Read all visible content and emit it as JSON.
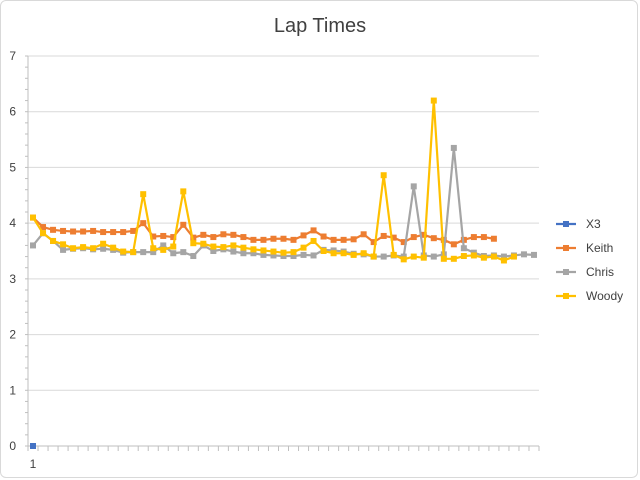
{
  "chart_data": {
    "type": "line",
    "title": "Lap Times",
    "xlabel": "",
    "ylabel": "",
    "ylim": [
      0,
      7
    ],
    "yticks": [
      "0",
      "1",
      "2",
      "3",
      "4",
      "5",
      "6",
      "7"
    ],
    "xtick_labels": [
      "1"
    ],
    "grid": true,
    "legend_position": "right",
    "x_count": 51,
    "series": [
      {
        "name": "X3",
        "color": "#4472c4",
        "values": [
          0
        ]
      },
      {
        "name": "Keith",
        "color": "#ed7d31",
        "values": [
          4.1,
          3.93,
          3.88,
          3.86,
          3.85,
          3.85,
          3.86,
          3.84,
          3.84,
          3.84,
          3.86,
          4.0,
          3.76,
          3.77,
          3.75,
          3.97,
          3.74,
          3.79,
          3.75,
          3.8,
          3.79,
          3.75,
          3.7,
          3.7,
          3.72,
          3.72,
          3.7,
          3.78,
          3.87,
          3.76,
          3.7,
          3.7,
          3.71,
          3.8,
          3.66,
          3.77,
          3.74,
          3.66,
          3.75,
          3.79,
          3.73,
          3.7,
          3.62,
          3.7,
          3.75,
          3.75,
          3.72
        ]
      },
      {
        "name": "Chris",
        "color": "#a5a5a5",
        "values": [
          3.6,
          3.82,
          3.68,
          3.52,
          3.54,
          3.55,
          3.53,
          3.54,
          3.52,
          3.47,
          3.48,
          3.48,
          3.48,
          3.6,
          3.46,
          3.48,
          3.41,
          3.6,
          3.5,
          3.53,
          3.49,
          3.46,
          3.46,
          3.43,
          3.42,
          3.41,
          3.41,
          3.43,
          3.42,
          3.52,
          3.51,
          3.49,
          3.45,
          3.44,
          3.4,
          3.4,
          3.42,
          3.4,
          4.66,
          3.42,
          3.4,
          3.44,
          5.35,
          3.55,
          3.47,
          3.41,
          3.42,
          3.4,
          3.42,
          3.44,
          3.43
        ]
      },
      {
        "name": "Woody",
        "color": "#ffc000",
        "values": [
          4.1,
          3.82,
          3.68,
          3.62,
          3.55,
          3.57,
          3.55,
          3.63,
          3.56,
          3.49,
          3.48,
          4.52,
          3.55,
          3.52,
          3.58,
          4.57,
          3.64,
          3.63,
          3.58,
          3.57,
          3.6,
          3.56,
          3.53,
          3.51,
          3.49,
          3.47,
          3.48,
          3.56,
          3.68,
          3.5,
          3.46,
          3.46,
          3.43,
          3.46,
          3.4,
          4.86,
          3.43,
          3.35,
          3.4,
          3.38,
          6.2,
          3.36,
          3.36,
          3.41,
          3.42,
          3.38,
          3.4,
          3.33,
          3.4
        ]
      }
    ]
  }
}
